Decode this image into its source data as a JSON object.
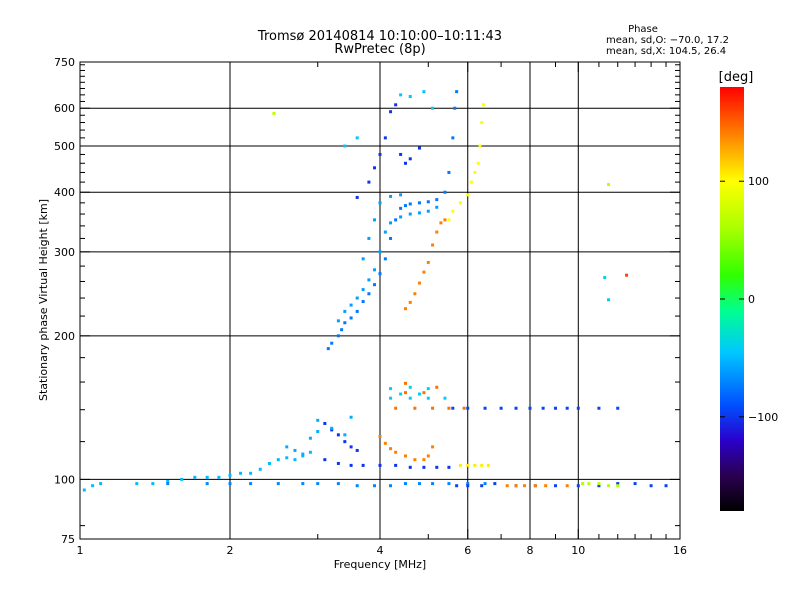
{
  "chart_data": {
    "type": "scatter",
    "title": "Tromsø 20140814 10:10:00–10:11:43",
    "subtitle": "RwPretec (8p)",
    "xlabel": "Frequency [MHz]",
    "ylabel": "Stationary phase Virtual Height [km]",
    "x_scale": "log",
    "y_scale": "log",
    "xlim": [
      1,
      16
    ],
    "ylim": [
      75,
      750
    ],
    "x_ticks": [
      1,
      2,
      4,
      6,
      8,
      10,
      16
    ],
    "x_tick_labels": [
      "1",
      "2",
      "4",
      "6",
      "8",
      "10",
      "16"
    ],
    "x_minor_ticks": [
      3,
      5,
      7,
      9,
      11,
      12,
      13,
      14,
      15
    ],
    "y_ticks": [
      75,
      100,
      200,
      300,
      400,
      500,
      600,
      750
    ],
    "y_tick_labels": [
      "75",
      "100",
      "200",
      "300",
      "400",
      "500",
      "600",
      "750"
    ],
    "grid": true,
    "stats_header": "Phase",
    "stats_line_o": "mean, sd,O: −70.0, 17.2",
    "stats_line_x": "mean, sd,X: 104.5, 26.4",
    "colorbar": {
      "label": "[deg]",
      "range": [
        -180,
        180
      ],
      "ticks": [
        100,
        0,
        -100
      ],
      "tick_labels": [
        "100",
        "0",
        "−100"
      ],
      "stops": [
        {
          "v": -180,
          "color": "#000000"
        },
        {
          "v": -150,
          "color": "#2a0050"
        },
        {
          "v": -120,
          "color": "#2a00cc"
        },
        {
          "v": -90,
          "color": "#0050ff"
        },
        {
          "v": -45,
          "color": "#00c8ff"
        },
        {
          "v": -10,
          "color": "#00ff90"
        },
        {
          "v": 20,
          "color": "#30ff00"
        },
        {
          "v": 60,
          "color": "#aaff00"
        },
        {
          "v": 100,
          "color": "#ffff00"
        },
        {
          "v": 140,
          "color": "#ff8000"
        },
        {
          "v": 180,
          "color": "#ff0000"
        }
      ]
    },
    "series": [
      {
        "phase": -50,
        "points": [
          [
            1.02,
            95
          ],
          [
            1.06,
            97
          ],
          [
            1.1,
            98
          ],
          [
            1.3,
            98
          ],
          [
            1.4,
            98
          ],
          [
            1.5,
            99
          ],
          [
            1.6,
            100
          ],
          [
            1.7,
            101
          ],
          [
            1.8,
            101
          ],
          [
            1.9,
            101
          ],
          [
            2.0,
            102
          ],
          [
            2.1,
            103
          ],
          [
            2.2,
            103
          ],
          [
            2.3,
            105
          ],
          [
            2.4,
            108
          ],
          [
            2.5,
            110
          ],
          [
            2.6,
            111
          ],
          [
            2.7,
            110
          ],
          [
            2.8,
            112
          ],
          [
            2.9,
            114
          ]
        ]
      },
      {
        "phase": -70,
        "points": [
          [
            1.5,
            98
          ],
          [
            1.8,
            98
          ],
          [
            2.0,
            98
          ],
          [
            2.2,
            98
          ],
          [
            2.5,
            98
          ],
          [
            2.8,
            98
          ],
          [
            3.0,
            98
          ],
          [
            3.3,
            98
          ],
          [
            3.6,
            97
          ],
          [
            3.9,
            97
          ],
          [
            4.2,
            97
          ],
          [
            4.5,
            98
          ],
          [
            4.8,
            98
          ],
          [
            5.1,
            98
          ],
          [
            5.5,
            98
          ],
          [
            6.0,
            98
          ],
          [
            6.5,
            98
          ]
        ]
      },
      {
        "phase": -100,
        "points": [
          [
            3.1,
            110
          ],
          [
            3.3,
            108
          ],
          [
            3.5,
            107
          ],
          [
            3.7,
            107
          ],
          [
            4.0,
            107
          ],
          [
            4.3,
            107
          ],
          [
            4.6,
            106
          ],
          [
            4.9,
            106
          ],
          [
            5.2,
            106
          ],
          [
            5.5,
            106
          ],
          [
            3.1,
            131
          ],
          [
            3.2,
            127
          ],
          [
            3.3,
            124
          ],
          [
            3.4,
            120
          ],
          [
            3.5,
            117
          ],
          [
            3.6,
            115
          ]
        ]
      },
      {
        "phase": -55,
        "points": [
          [
            2.6,
            117
          ],
          [
            2.7,
            115
          ],
          [
            2.8,
            113
          ],
          [
            2.9,
            122
          ],
          [
            3.0,
            126
          ],
          [
            3.0,
            133
          ],
          [
            3.2,
            128
          ],
          [
            3.4,
            124
          ],
          [
            3.5,
            135
          ]
        ]
      },
      {
        "phase": -40,
        "points": [
          [
            4.2,
            148
          ],
          [
            4.6,
            148
          ],
          [
            5.0,
            148
          ],
          [
            5.4,
            148
          ],
          [
            4.2,
            155
          ],
          [
            4.6,
            156
          ],
          [
            5.0,
            155
          ],
          [
            4.4,
            151
          ],
          [
            4.8,
            151
          ]
        ]
      },
      {
        "phase": 145,
        "points": [
          [
            4.3,
            141
          ],
          [
            4.7,
            141
          ],
          [
            5.1,
            141
          ],
          [
            5.5,
            141
          ],
          [
            5.9,
            141
          ],
          [
            4.5,
            152
          ],
          [
            4.9,
            152
          ],
          [
            5.2,
            156
          ],
          [
            4.5,
            159
          ]
        ]
      },
      {
        "phase": -95,
        "points": [
          [
            5.6,
            141
          ],
          [
            6.0,
            141
          ],
          [
            6.5,
            141
          ],
          [
            7.0,
            141
          ],
          [
            7.5,
            141
          ],
          [
            8.0,
            141
          ],
          [
            8.5,
            141
          ],
          [
            9.0,
            141
          ],
          [
            9.5,
            141
          ],
          [
            10.0,
            141
          ],
          [
            11.0,
            141
          ],
          [
            12.0,
            141
          ]
        ]
      },
      {
        "phase": 140,
        "points": [
          [
            4.0,
            123
          ],
          [
            4.1,
            119
          ],
          [
            4.2,
            116
          ],
          [
            4.3,
            114
          ],
          [
            4.5,
            112
          ],
          [
            4.7,
            110
          ],
          [
            4.9,
            110
          ],
          [
            5.0,
            112
          ],
          [
            5.1,
            117
          ]
        ]
      },
      {
        "phase": 105,
        "points": [
          [
            5.8,
            107
          ],
          [
            6.0,
            107
          ],
          [
            6.2,
            107
          ],
          [
            6.4,
            107
          ],
          [
            6.6,
            107
          ]
        ]
      },
      {
        "phase": -95,
        "points": [
          [
            5.7,
            97
          ],
          [
            6.0,
            97
          ],
          [
            6.4,
            97
          ],
          [
            6.8,
            98
          ],
          [
            7.5,
            97
          ],
          [
            8.2,
            97
          ],
          [
            9.0,
            97
          ],
          [
            10.0,
            97
          ],
          [
            11.0,
            97
          ],
          [
            12.0,
            98
          ],
          [
            13.0,
            98
          ],
          [
            14.0,
            97
          ],
          [
            15.0,
            97
          ]
        ]
      },
      {
        "phase": 140,
        "points": [
          [
            7.2,
            97
          ],
          [
            7.5,
            97
          ],
          [
            7.8,
            97
          ],
          [
            8.2,
            97
          ],
          [
            8.6,
            97
          ],
          [
            9.5,
            97
          ]
        ]
      },
      {
        "phase": 65,
        "points": [
          [
            10.2,
            98
          ],
          [
            10.5,
            98
          ],
          [
            11.0,
            98
          ],
          [
            11.5,
            97
          ],
          [
            12.0,
            97
          ]
        ]
      },
      {
        "phase": -75,
        "points": [
          [
            3.15,
            188
          ],
          [
            3.2,
            193
          ],
          [
            3.3,
            200
          ],
          [
            3.35,
            206
          ],
          [
            3.4,
            213
          ],
          [
            3.5,
            218
          ],
          [
            3.6,
            225
          ],
          [
            3.7,
            236
          ],
          [
            3.8,
            245
          ],
          [
            3.9,
            256
          ],
          [
            4.0,
            270
          ],
          [
            4.1,
            290
          ],
          [
            4.2,
            320
          ],
          [
            4.3,
            350
          ],
          [
            4.4,
            370
          ],
          [
            4.5,
            375
          ],
          [
            4.6,
            378
          ],
          [
            4.8,
            380
          ],
          [
            5.0,
            382
          ],
          [
            5.2,
            386
          ],
          [
            5.4,
            400
          ],
          [
            5.5,
            440
          ],
          [
            5.6,
            520
          ],
          [
            5.65,
            600
          ],
          [
            5.7,
            650
          ]
        ]
      },
      {
        "phase": -60,
        "points": [
          [
            3.3,
            215
          ],
          [
            3.4,
            225
          ],
          [
            3.5,
            232
          ],
          [
            3.6,
            240
          ],
          [
            3.7,
            250
          ],
          [
            3.8,
            262
          ],
          [
            3.9,
            275
          ],
          [
            4.0,
            300
          ],
          [
            4.1,
            330
          ],
          [
            4.2,
            345
          ],
          [
            4.4,
            355
          ],
          [
            4.6,
            360
          ],
          [
            4.8,
            362
          ],
          [
            5.0,
            365
          ],
          [
            5.2,
            372
          ],
          [
            3.7,
            290
          ],
          [
            3.8,
            320
          ],
          [
            3.9,
            350
          ],
          [
            4.0,
            380
          ],
          [
            4.2,
            392
          ],
          [
            4.4,
            395
          ]
        ]
      },
      {
        "phase": -100,
        "points": [
          [
            3.6,
            390
          ],
          [
            3.8,
            420
          ],
          [
            3.9,
            450
          ],
          [
            4.0,
            480
          ],
          [
            4.1,
            520
          ],
          [
            4.2,
            590
          ],
          [
            4.3,
            610
          ],
          [
            4.4,
            480
          ],
          [
            4.5,
            460
          ],
          [
            4.6,
            470
          ],
          [
            4.8,
            495
          ]
        ]
      },
      {
        "phase": -45,
        "points": [
          [
            4.4,
            640
          ],
          [
            4.6,
            635
          ],
          [
            4.9,
            650
          ],
          [
            5.1,
            600
          ],
          [
            3.4,
            500
          ],
          [
            3.6,
            520
          ]
        ]
      },
      {
        "phase": 140,
        "points": [
          [
            4.5,
            228
          ],
          [
            4.6,
            235
          ],
          [
            4.7,
            245
          ],
          [
            4.8,
            258
          ],
          [
            4.9,
            272
          ],
          [
            5.0,
            285
          ],
          [
            5.1,
            310
          ],
          [
            5.2,
            330
          ],
          [
            5.3,
            345
          ],
          [
            5.4,
            350
          ]
        ]
      },
      {
        "phase": 100,
        "points": [
          [
            5.5,
            350
          ],
          [
            5.6,
            365
          ],
          [
            5.8,
            380
          ],
          [
            6.0,
            395
          ],
          [
            6.1,
            420
          ],
          [
            6.2,
            440
          ],
          [
            6.3,
            460
          ],
          [
            6.35,
            500
          ],
          [
            6.4,
            560
          ],
          [
            6.45,
            610
          ]
        ]
      },
      {
        "phase": 70,
        "points": [
          [
            2.45,
            585
          ],
          [
            11.5,
            415
          ]
        ]
      },
      {
        "phase": -40,
        "points": [
          [
            11.3,
            265
          ],
          [
            11.5,
            238
          ]
        ]
      },
      {
        "phase": 160,
        "points": [
          [
            12.5,
            268
          ]
        ]
      }
    ]
  }
}
